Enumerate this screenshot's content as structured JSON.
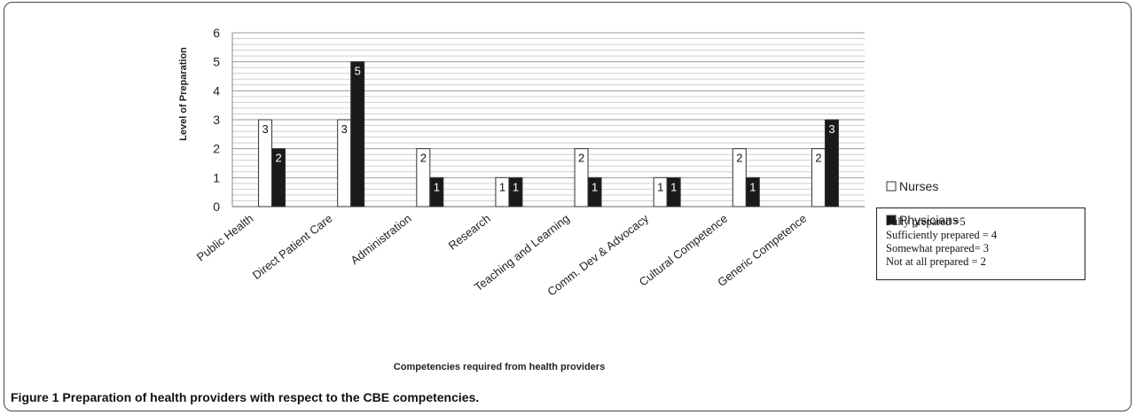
{
  "chart_data": {
    "type": "bar",
    "ylabel": "Level of Preparation",
    "xlabel": "Competencies required from health providers",
    "ylim": [
      0,
      6
    ],
    "yticks": [
      "0",
      "1",
      "2",
      "3",
      "4",
      "5",
      "6"
    ],
    "grid": true,
    "legend_position": "right",
    "categories": [
      "Public Health",
      "Direct Patient Care",
      "Administration",
      "Research",
      "Teaching and Learning",
      "Comm. Dev & Advocacy",
      "Cultural Competence",
      "Generic Competence"
    ],
    "series": [
      {
        "name": "Nurses",
        "color": "#ffffff",
        "values": [
          3,
          3,
          2,
          1,
          2,
          1,
          2,
          2
        ]
      },
      {
        "name": "Physicians",
        "color": "#1a1a1a",
        "values": [
          2,
          5,
          1,
          1,
          1,
          1,
          1,
          3
        ]
      }
    ]
  },
  "scale_note": {
    "lines": [
      "Fully prepared =5",
      "Sufficiently prepared = 4",
      "Somewhat prepared= 3",
      "Not at all prepared = 2"
    ]
  },
  "caption": {
    "figure_label": "Figure 1",
    "text": "Preparation of health providers with respect to the CBE competencies."
  }
}
